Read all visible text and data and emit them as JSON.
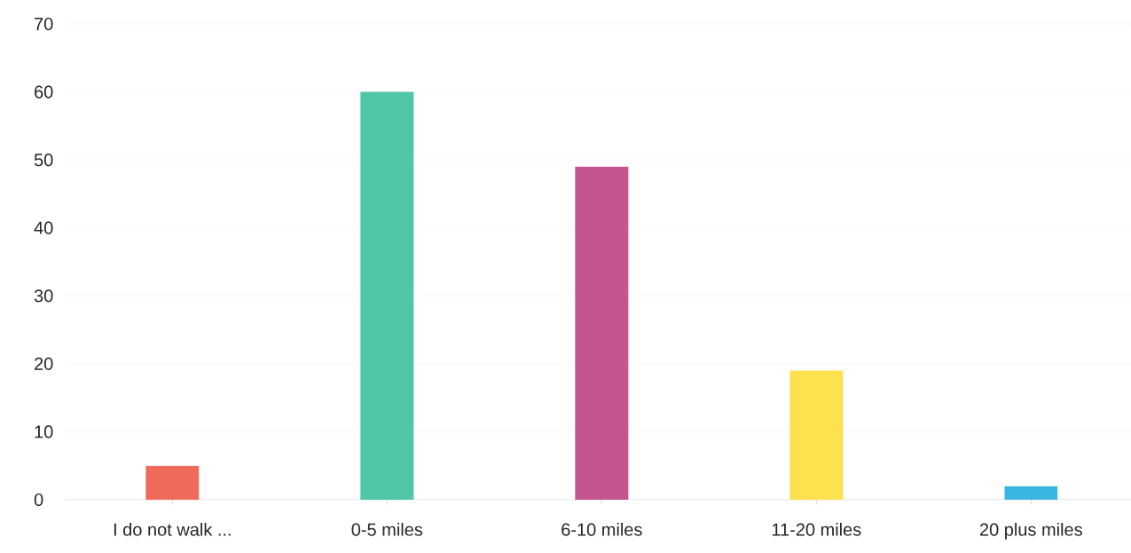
{
  "chart_data": {
    "type": "bar",
    "categories": [
      "I do not walk ...",
      "0-5 miles",
      "6-10 miles",
      "11-20 miles",
      "20 plus miles"
    ],
    "values": [
      5,
      60,
      49,
      19,
      2
    ],
    "colors": [
      "#ee6b5b",
      "#4fc6a8",
      "#c4558f",
      "#fde14f",
      "#3ab7e0"
    ],
    "ylim": [
      0,
      70
    ],
    "yticks": [
      0,
      10,
      20,
      30,
      40,
      50,
      60,
      70
    ],
    "grid": "y"
  }
}
